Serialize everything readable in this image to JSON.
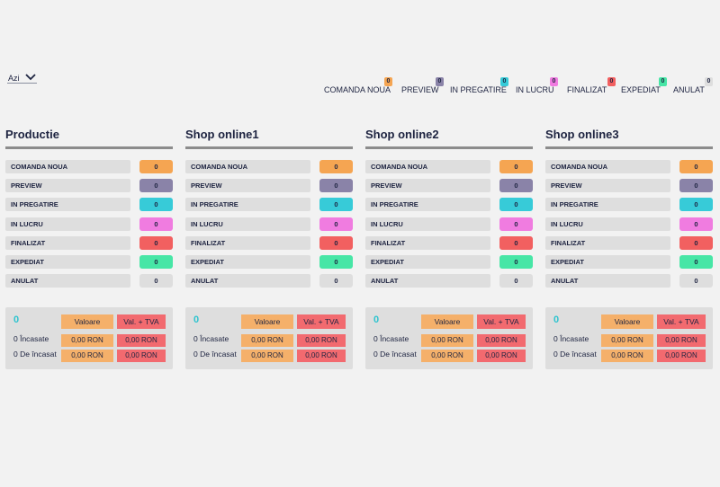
{
  "colors": {
    "comanda_noua": "#f5a552",
    "preview": "#8a83a8",
    "in_pregatire": "#37cbd8",
    "in_lucru": "#f07ce0",
    "finalizat": "#f26060",
    "expediat": "#47e6a6",
    "anulat": "#dedede",
    "valoare": "#f5b06a",
    "val_tva": "#f26a6f",
    "teal_text": "#2ec4cf"
  },
  "period": {
    "label": "Azi",
    "icon": "chevron-down-icon"
  },
  "legend": [
    {
      "label": "COMANDA NOUA",
      "count": "0",
      "color": "#f5a552"
    },
    {
      "label": "PREVIEW",
      "count": "0",
      "color": "#8a83a8"
    },
    {
      "label": "IN PREGATIRE",
      "count": "0",
      "color": "#37cbd8"
    },
    {
      "label": "IN LUCRU",
      "count": "0",
      "color": "#f07ce0"
    },
    {
      "label": "FINALIZAT",
      "count": "0",
      "color": "#f26060"
    },
    {
      "label": "EXPEDIAT",
      "count": "0",
      "color": "#47e6a6"
    },
    {
      "label": "ANULAT",
      "count": "0",
      "color": "#dedede"
    }
  ],
  "columns": [
    {
      "title": "Productie",
      "statuses": [
        {
          "name": "COMANDA NOUA",
          "count": "0",
          "color": "#f5a552"
        },
        {
          "name": "PREVIEW",
          "count": "0",
          "color": "#8a83a8"
        },
        {
          "name": "IN PREGATIRE",
          "count": "0",
          "color": "#37cbd8"
        },
        {
          "name": "IN LUCRU",
          "count": "0",
          "color": "#f07ce0"
        },
        {
          "name": "FINALIZAT",
          "count": "0",
          "color": "#f26060"
        },
        {
          "name": "EXPEDIAT",
          "count": "0",
          "color": "#47e6a6"
        },
        {
          "name": "ANULAT",
          "count": "0",
          "color": "#dedede"
        }
      ],
      "summary": {
        "total": "0",
        "valoare_header": "Valoare",
        "tva_header": "Val. + TVA",
        "rows": [
          {
            "label": "0 Încasate",
            "valoare": "0,00 RON",
            "tva": "0,00 RON"
          },
          {
            "label": "0 De încasat",
            "valoare": "0,00 RON",
            "tva": "0,00 RON"
          }
        ]
      }
    },
    {
      "title": "Shop online1",
      "statuses": [
        {
          "name": "COMANDA NOUA",
          "count": "0",
          "color": "#f5a552"
        },
        {
          "name": "PREVIEW",
          "count": "0",
          "color": "#8a83a8"
        },
        {
          "name": "IN PREGATIRE",
          "count": "0",
          "color": "#37cbd8"
        },
        {
          "name": "IN LUCRU",
          "count": "0",
          "color": "#f07ce0"
        },
        {
          "name": "FINALIZAT",
          "count": "0",
          "color": "#f26060"
        },
        {
          "name": "EXPEDIAT",
          "count": "0",
          "color": "#47e6a6"
        },
        {
          "name": "ANULAT",
          "count": "0",
          "color": "#dedede"
        }
      ],
      "summary": {
        "total": "0",
        "valoare_header": "Valoare",
        "tva_header": "Val. + TVA",
        "rows": [
          {
            "label": "0 Încasate",
            "valoare": "0,00 RON",
            "tva": "0,00 RON"
          },
          {
            "label": "0 De încasat",
            "valoare": "0,00 RON",
            "tva": "0,00 RON"
          }
        ]
      }
    },
    {
      "title": "Shop online2",
      "statuses": [
        {
          "name": "COMANDA NOUA",
          "count": "0",
          "color": "#f5a552"
        },
        {
          "name": "PREVIEW",
          "count": "0",
          "color": "#8a83a8"
        },
        {
          "name": "IN PREGATIRE",
          "count": "0",
          "color": "#37cbd8"
        },
        {
          "name": "IN LUCRU",
          "count": "0",
          "color": "#f07ce0"
        },
        {
          "name": "FINALIZAT",
          "count": "0",
          "color": "#f26060"
        },
        {
          "name": "EXPEDIAT",
          "count": "0",
          "color": "#47e6a6"
        },
        {
          "name": "ANULAT",
          "count": "0",
          "color": "#dedede"
        }
      ],
      "summary": {
        "total": "0",
        "valoare_header": "Valoare",
        "tva_header": "Val. + TVA",
        "rows": [
          {
            "label": "0 Încasate",
            "valoare": "0,00 RON",
            "tva": "0,00 RON"
          },
          {
            "label": "0 De încasat",
            "valoare": "0,00 RON",
            "tva": "0,00 RON"
          }
        ]
      }
    },
    {
      "title": "Shop online3",
      "statuses": [
        {
          "name": "COMANDA NOUA",
          "count": "0",
          "color": "#f5a552"
        },
        {
          "name": "PREVIEW",
          "count": "0",
          "color": "#8a83a8"
        },
        {
          "name": "IN PREGATIRE",
          "count": "0",
          "color": "#37cbd8"
        },
        {
          "name": "IN LUCRU",
          "count": "0",
          "color": "#f07ce0"
        },
        {
          "name": "FINALIZAT",
          "count": "0",
          "color": "#f26060"
        },
        {
          "name": "EXPEDIAT",
          "count": "0",
          "color": "#47e6a6"
        },
        {
          "name": "ANULAT",
          "count": "0",
          "color": "#dedede"
        }
      ],
      "summary": {
        "total": "0",
        "valoare_header": "Valoare",
        "tva_header": "Val. + TVA",
        "rows": [
          {
            "label": "0 Încasate",
            "valoare": "0,00 RON",
            "tva": "0,00 RON"
          },
          {
            "label": "0 De încasat",
            "valoare": "0,00 RON",
            "tva": "0,00 RON"
          }
        ]
      }
    }
  ]
}
